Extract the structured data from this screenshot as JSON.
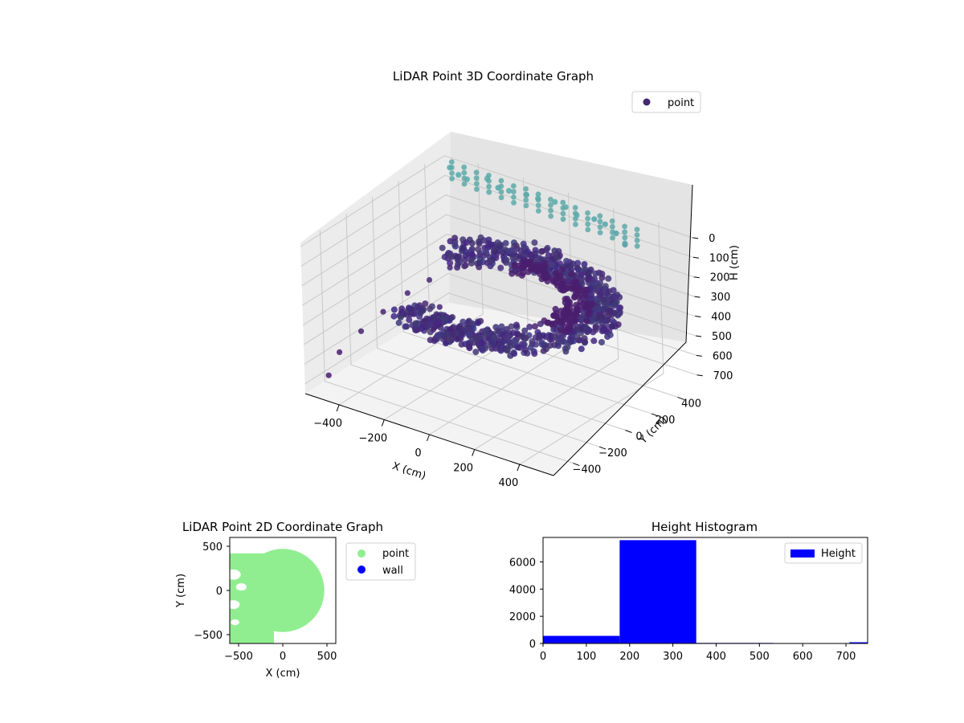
{
  "chart_data": [
    {
      "type": "scatter",
      "projection": "3d",
      "title": "LiDAR Point 3D Coordinate Graph",
      "xlabel": "X (cm)",
      "ylabel": "Y (cm)",
      "zlabel": "H (cm)",
      "xlim": [
        -550,
        550
      ],
      "ylim": [
        -550,
        550
      ],
      "zlim": [
        750,
        -20
      ],
      "x_ticks": [
        -400,
        -200,
        0,
        200,
        400
      ],
      "y_ticks": [
        -400,
        -200,
        0,
        200,
        400
      ],
      "z_ticks": [
        0,
        100,
        200,
        300,
        400,
        500,
        600,
        700
      ],
      "x_tick_labels": [
        "−400",
        "−200",
        "0",
        "200",
        "400"
      ],
      "y_tick_labels": [
        "−400",
        "−200",
        "0",
        "200",
        "400"
      ],
      "z_tick_labels": [
        "0",
        "100",
        "200",
        "300",
        "400",
        "500",
        "600",
        "700"
      ],
      "legend": [
        "point"
      ],
      "legend_position": "top-right",
      "grid": true,
      "colormap": "viridis",
      "series": [
        {
          "name": "point",
          "color": "#46276f",
          "note_ring": {
            "radius": [
              330,
              470
            ],
            "height": [
              230,
              330
            ],
            "angle_deg": [
              -120,
              150
            ]
          },
          "points": [
            {
              "x": -480,
              "y": 470,
              "h": 0
            },
            {
              "x": -430,
              "y": 450,
              "h": 10
            },
            {
              "x": -380,
              "y": 430,
              "h": 5
            },
            {
              "x": -320,
              "y": 480,
              "h": 0
            },
            {
              "x": -260,
              "y": 460,
              "h": 15
            },
            {
              "x": -200,
              "y": 440,
              "h": 0
            },
            {
              "x": -140,
              "y": 470,
              "h": 10
            },
            {
              "x": -80,
              "y": 455,
              "h": 0
            },
            {
              "x": -20,
              "y": 480,
              "h": 5
            },
            {
              "x": 40,
              "y": 460,
              "h": 0
            },
            {
              "x": 100,
              "y": 440,
              "h": 10
            },
            {
              "x": 160,
              "y": 470,
              "h": 20
            },
            {
              "x": 220,
              "y": 450,
              "h": 15
            },
            {
              "x": 280,
              "y": 430,
              "h": 30
            },
            {
              "x": 330,
              "y": 410,
              "h": 60
            },
            {
              "x": -520,
              "y": -420,
              "h": 700
            },
            {
              "x": -540,
              "y": -300,
              "h": 640
            },
            {
              "x": -500,
              "y": -200,
              "h": 560
            },
            {
              "x": -470,
              "y": -80,
              "h": 500
            },
            {
              "x": -430,
              "y": 40,
              "h": 440
            },
            {
              "x": -390,
              "y": 140,
              "h": 400
            },
            {
              "x": -350,
              "y": 230,
              "h": 360
            },
            {
              "x": -300,
              "y": 60,
              "h": 470
            },
            {
              "x": -260,
              "y": -60,
              "h": 520
            }
          ]
        }
      ]
    },
    {
      "type": "scatter",
      "title": "LiDAR Point 2D Coordinate Graph",
      "xlabel": "X (cm)",
      "ylabel": "Y (cm)",
      "xlim": [
        -600,
        600
      ],
      "ylim": [
        -600,
        600
      ],
      "x_ticks": [
        -500,
        0,
        500
      ],
      "y_ticks": [
        -500,
        0,
        500
      ],
      "x_tick_labels": [
        "−500",
        "0",
        "500"
      ],
      "y_tick_labels": [
        "−500",
        "0",
        "500"
      ],
      "legend_position": "outside-right",
      "series": [
        {
          "name": "point",
          "color": "#90ee90",
          "region": {
            "center": [
              0,
              0
            ],
            "radius": 470,
            "x_min": -600,
            "y_min": -600
          }
        },
        {
          "name": "wall",
          "color": "#0000ff",
          "points": []
        }
      ]
    },
    {
      "type": "bar",
      "title": "Height Histogram",
      "xlim": [
        0,
        750
      ],
      "ylim": [
        0,
        7800
      ],
      "x_ticks": [
        0,
        100,
        200,
        300,
        400,
        500,
        600,
        700
      ],
      "y_ticks": [
        0,
        2000,
        4000,
        6000
      ],
      "x_tick_labels": [
        "0",
        "100",
        "200",
        "300",
        "400",
        "500",
        "600",
        "700"
      ],
      "y_tick_labels": [
        "0",
        "2000",
        "4000",
        "6000"
      ],
      "legend": [
        "Height"
      ],
      "legend_position": "top-right",
      "series": [
        {
          "name": "Height",
          "color": "#0000ff",
          "bins": [
            {
              "start": 0,
              "end": 177,
              "count": 560
            },
            {
              "start": 177,
              "end": 354,
              "count": 7600
            },
            {
              "start": 354,
              "end": 531,
              "count": 40
            },
            {
              "start": 531,
              "end": 708,
              "count": 30
            },
            {
              "start": 708,
              "end": 885,
              "count": 90
            }
          ]
        }
      ]
    }
  ]
}
